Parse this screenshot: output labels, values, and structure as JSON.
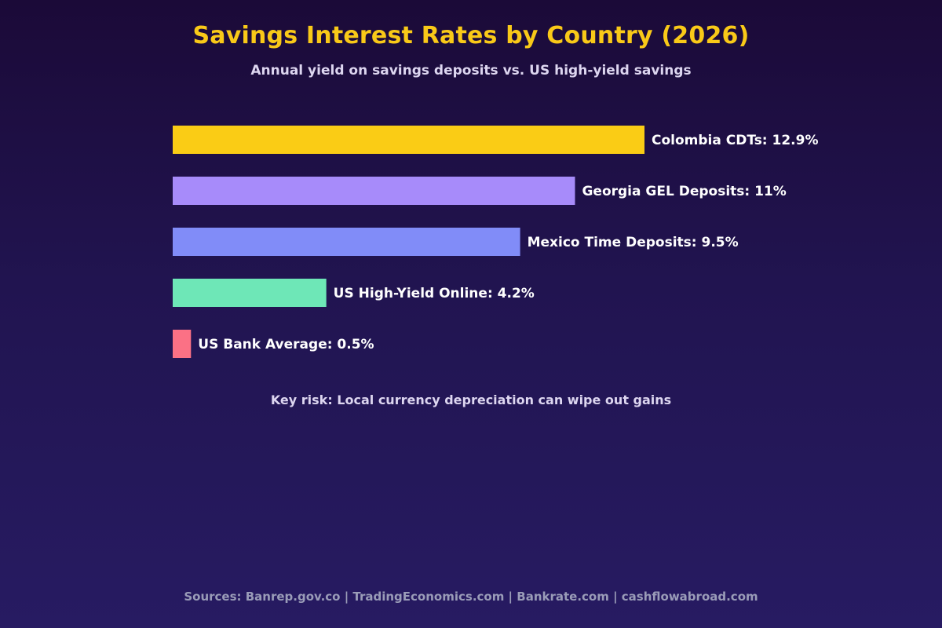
{
  "header": {
    "title": "Savings Interest Rates by Country (2026)",
    "subtitle": "Annual yield on savings deposits vs. US high-yield savings"
  },
  "annotation": "Key risk: Local currency depreciation can wipe out gains",
  "footer": {
    "sources": "Sources: Banrep.gov.co | TradingEconomics.com | Bankrate.com | cashflowabroad.com"
  },
  "chart_data": {
    "type": "bar",
    "orientation": "horizontal",
    "title": "Savings Interest Rates by Country (2026)",
    "subtitle": "Annual yield on savings deposits vs. US high-yield savings",
    "xlabel": "",
    "ylabel": "",
    "grid": false,
    "legend": "none",
    "categories": [
      "Colombia CDTs",
      "Georgia GEL Deposits",
      "Mexico Time Deposits",
      "US High-Yield Online",
      "US Bank Average"
    ],
    "values": [
      12.9,
      11,
      9.5,
      4.2,
      0.5
    ],
    "data_labels": [
      "Colombia CDTs: 12.9%",
      "Georgia GEL Deposits: 11%",
      "Mexico Time Deposits: 9.5%",
      "US High-Yield Online: 4.2%",
      "US Bank Average: 0.5%"
    ],
    "colors": [
      "#facc15",
      "#a78bfa",
      "#818cf8",
      "#6ee7b7",
      "#fb7185"
    ],
    "label_color": "#ffffff"
  }
}
